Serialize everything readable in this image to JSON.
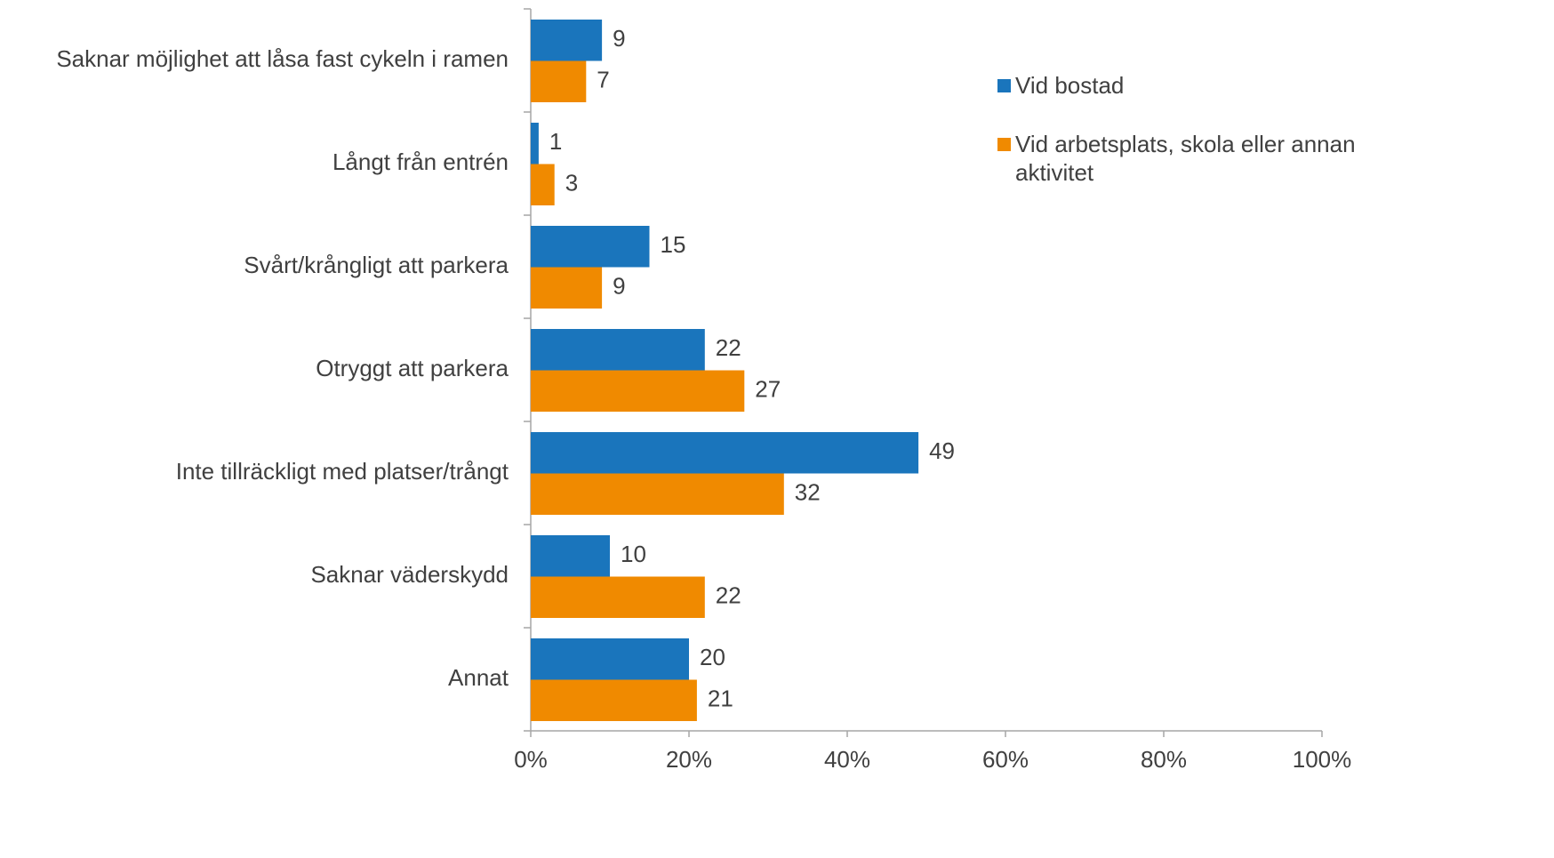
{
  "chart_data": {
    "type": "bar",
    "orientation": "horizontal",
    "categories": [
      "Saknar möjlighet att låsa fast cykeln i ramen",
      "Långt från entrén",
      "Svårt/krångligt att parkera",
      "Otryggt att parkera",
      "Inte tillräckligt med platser/trångt",
      "Saknar väderskydd",
      "Annat"
    ],
    "series": [
      {
        "name": "Vid bostad",
        "color": "#1a75bc",
        "values": [
          9,
          1,
          15,
          22,
          49,
          10,
          20
        ]
      },
      {
        "name": "Vid arbetsplats, skola eller annan aktivitet",
        "color": "#f08a00",
        "values": [
          7,
          3,
          9,
          27,
          32,
          22,
          21
        ]
      }
    ],
    "xlim": [
      0,
      100
    ],
    "xticks": [
      {
        "value": 0,
        "label": "0%"
      },
      {
        "value": 20,
        "label": "20%"
      },
      {
        "value": 40,
        "label": "40%"
      },
      {
        "value": 60,
        "label": "60%"
      },
      {
        "value": 80,
        "label": "80%"
      },
      {
        "value": 100,
        "label": "100%"
      }
    ],
    "grid": false,
    "legend": "right"
  }
}
